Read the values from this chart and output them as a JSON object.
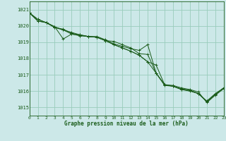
{
  "title": "Graphe pression niveau de la mer (hPa)",
  "bg_color": "#cce8e8",
  "grid_color": "#99ccbb",
  "line_color": "#1a5c1a",
  "xlim": [
    0,
    23
  ],
  "ylim": [
    1014.5,
    1021.5
  ],
  "yticks": [
    1015,
    1016,
    1017,
    1018,
    1019,
    1020,
    1021
  ],
  "xticks": [
    0,
    1,
    2,
    3,
    4,
    5,
    6,
    7,
    8,
    9,
    10,
    11,
    12,
    13,
    14,
    15,
    16,
    17,
    18,
    19,
    20,
    21,
    22,
    23
  ],
  "series": [
    [
      1020.8,
      1020.4,
      1020.2,
      1019.9,
      1019.8,
      1019.55,
      1019.45,
      1019.35,
      1019.3,
      1019.1,
      1019.05,
      1018.85,
      1018.65,
      1018.3,
      1018.25,
      1017.1,
      1016.35,
      1016.3,
      1016.15,
      1016.05,
      1015.85,
      1015.35,
      1015.8,
      1016.2
    ],
    [
      1020.8,
      1020.4,
      1020.2,
      1019.9,
      1019.75,
      1019.6,
      1019.45,
      1019.35,
      1019.3,
      1019.1,
      1018.85,
      1018.65,
      1018.45,
      1018.2,
      1017.8,
      1017.6,
      1016.4,
      1016.3,
      1016.1,
      1016.05,
      1015.85,
      1015.4,
      1015.85,
      1016.2
    ],
    [
      1020.8,
      1020.3,
      1020.2,
      1019.95,
      1019.2,
      1019.5,
      1019.4,
      1019.35,
      1019.35,
      1019.15,
      1018.9,
      1018.75,
      1018.6,
      1018.5,
      1018.85,
      1017.1,
      1016.4,
      1016.35,
      1016.2,
      1016.1,
      1015.95,
      1015.3,
      1015.75,
      1016.15
    ],
    [
      1020.8,
      1020.3,
      1020.2,
      1019.95,
      1019.75,
      1019.5,
      1019.4,
      1019.35,
      1019.3,
      1019.1,
      1018.85,
      1018.65,
      1018.45,
      1018.2,
      1017.8,
      1017.1,
      1016.4,
      1016.3,
      1016.1,
      1016.0,
      1015.85,
      1015.35,
      1015.8,
      1016.2
    ]
  ]
}
